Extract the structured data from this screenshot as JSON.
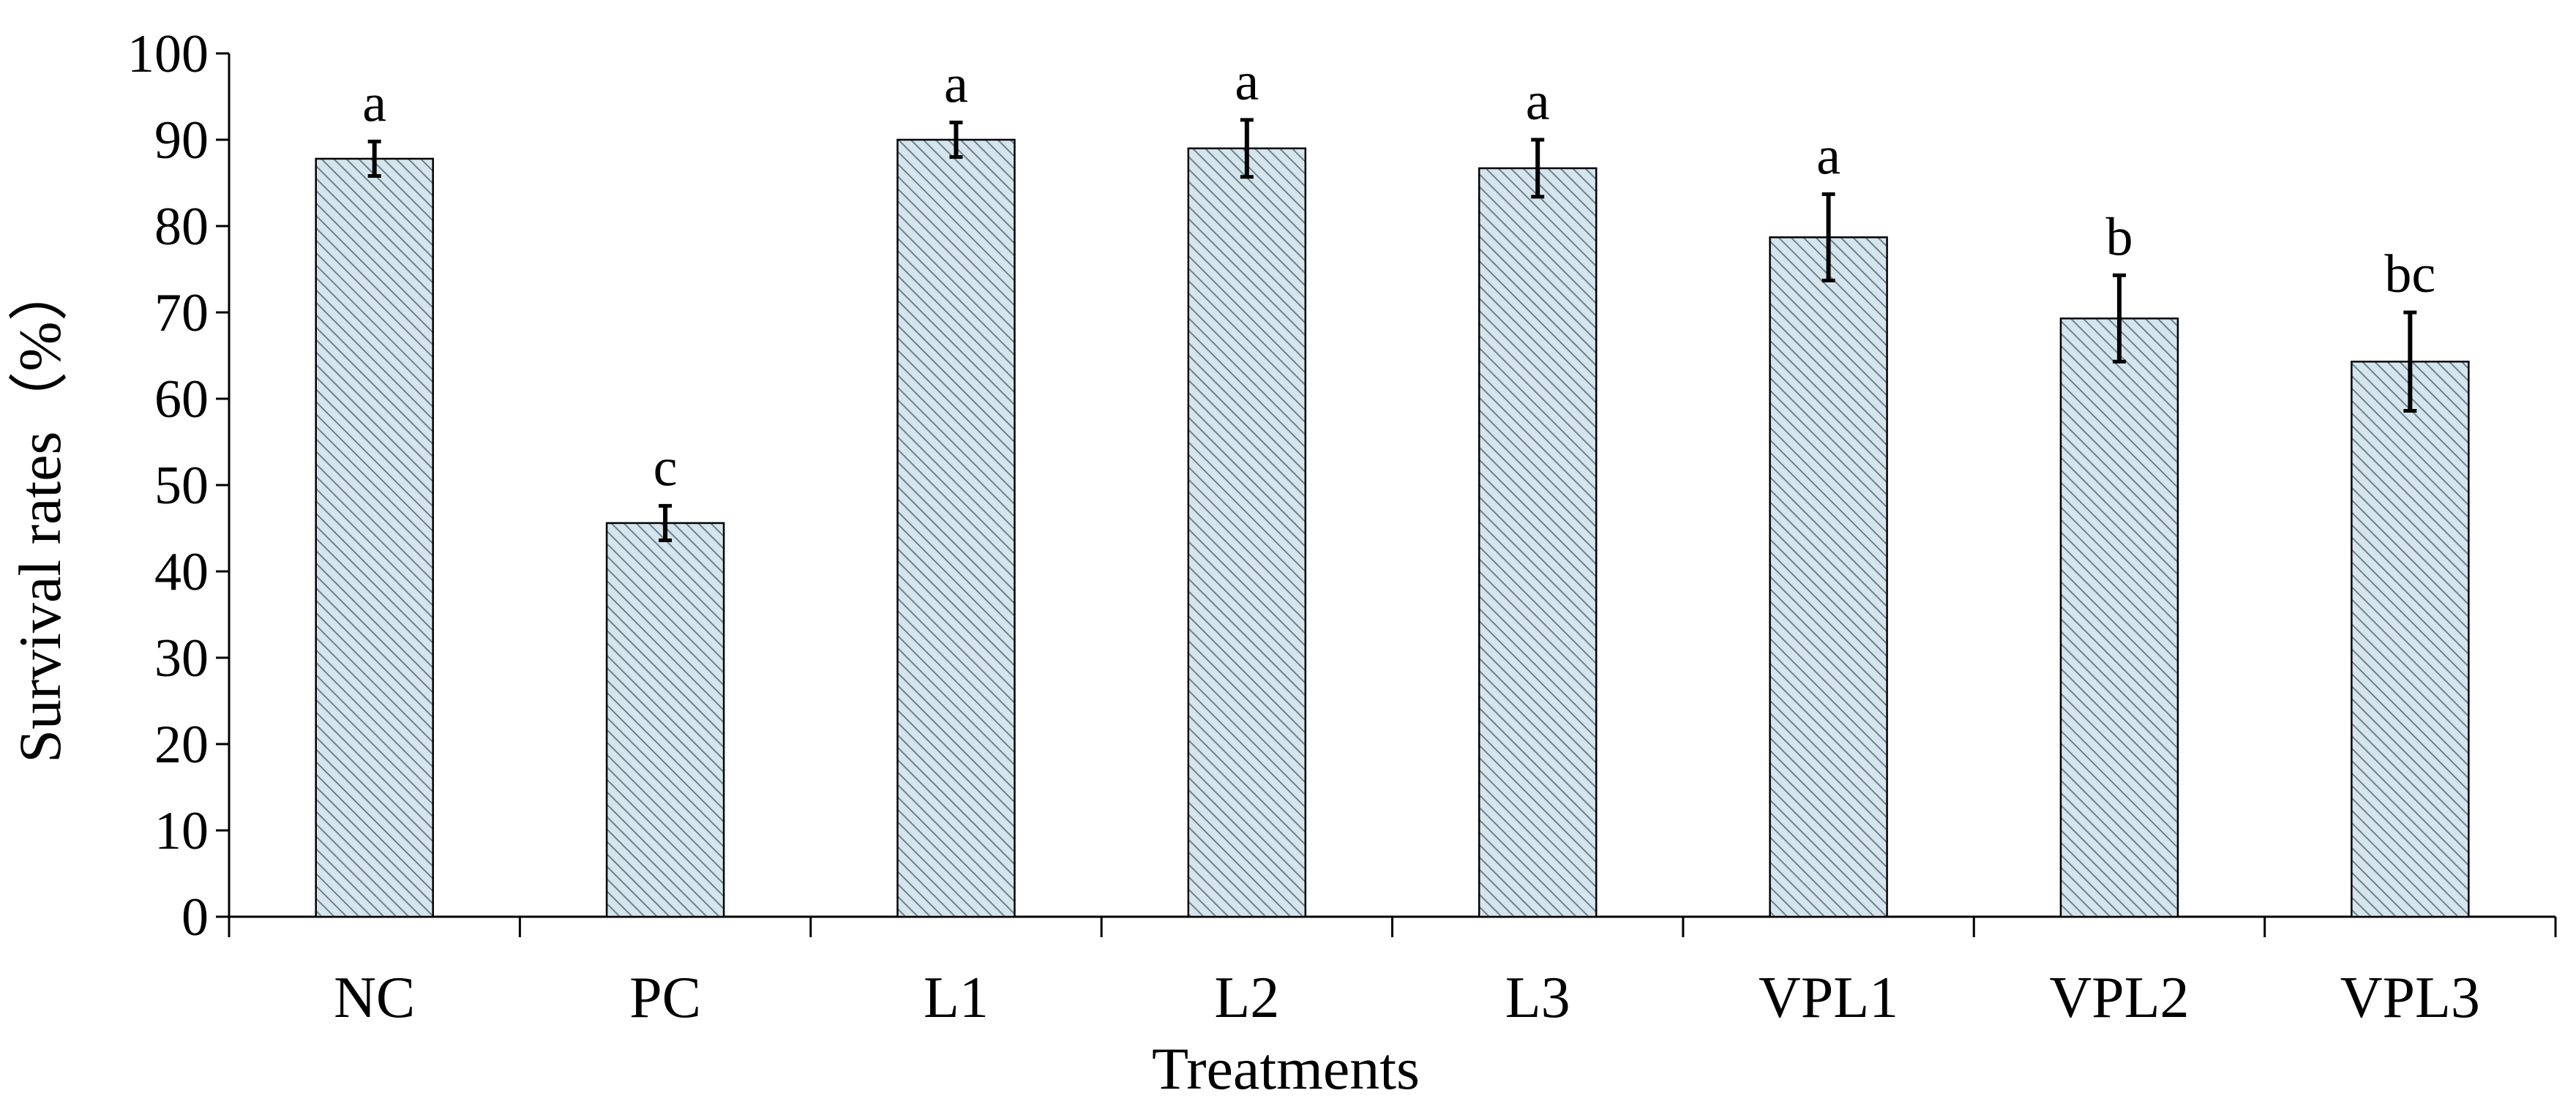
{
  "chart_data": {
    "type": "bar",
    "title": "",
    "xlabel": "Treatments",
    "ylabel": "Survival rates（%）",
    "ylim": [
      0,
      100
    ],
    "yticks": [
      0,
      10,
      20,
      30,
      40,
      50,
      60,
      70,
      80,
      90,
      100
    ],
    "ytick_labels": [
      "0",
      "10",
      "20",
      "30",
      "40",
      "50",
      "60",
      "70",
      "80",
      "90",
      "100"
    ],
    "categories": [
      "NC",
      "PC",
      "L1",
      "L2",
      "L3",
      "VPL1",
      "VPL2",
      "VPL3"
    ],
    "values": [
      87.8,
      45.6,
      90.0,
      89.0,
      86.7,
      78.7,
      69.3,
      64.3
    ],
    "errors": [
      2.0,
      2.0,
      2.0,
      3.3,
      3.3,
      5.0,
      5.0,
      5.7
    ],
    "significance": [
      "a",
      "c",
      "a",
      "a",
      "a",
      "a",
      "b",
      "bc"
    ],
    "grid": false,
    "legend": "none",
    "bar_fill": "#d6e4ec",
    "bar_hatch": "#6b8290",
    "bar_edge": "#000000"
  }
}
